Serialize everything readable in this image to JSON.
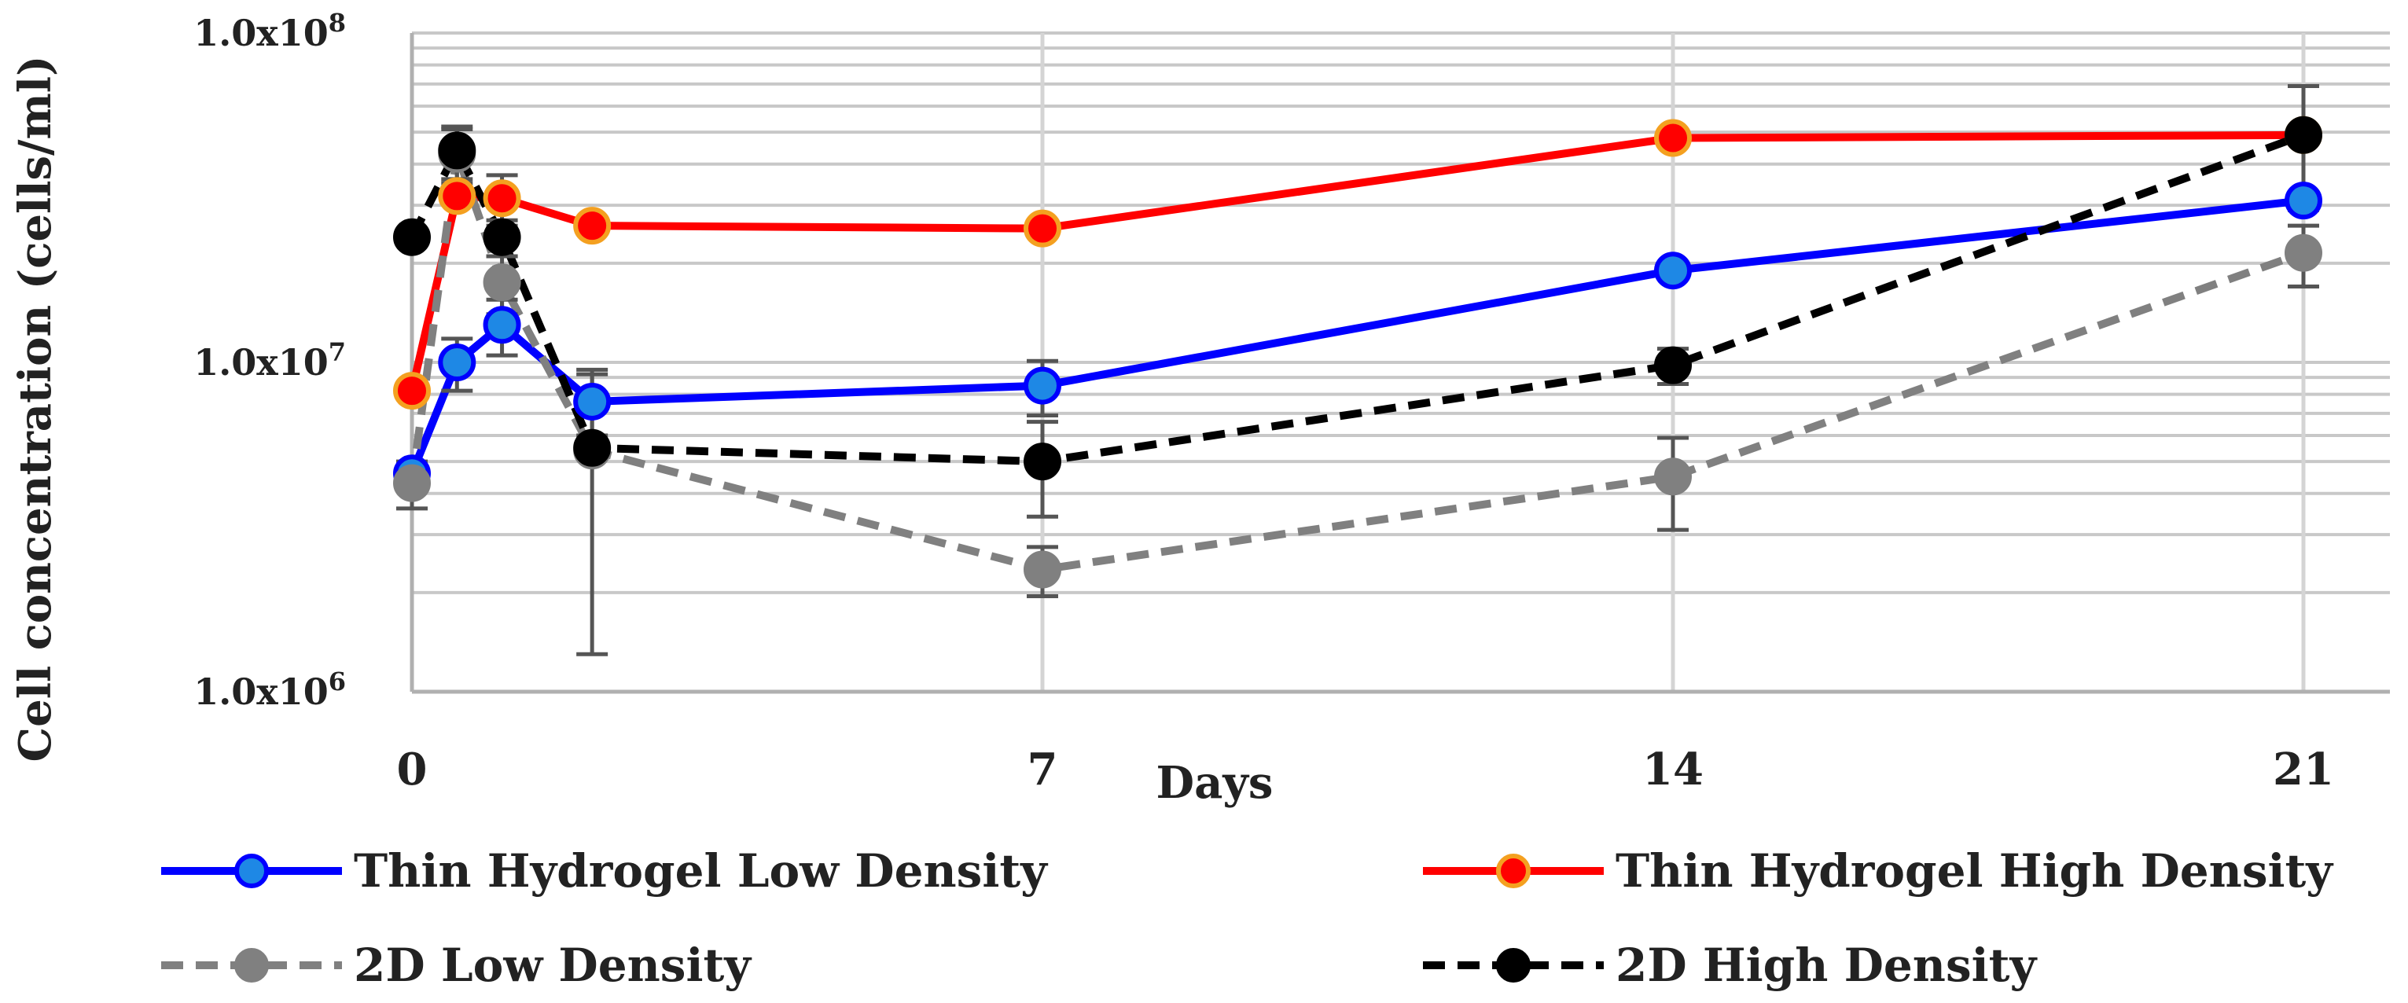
{
  "chart_data": {
    "type": "line",
    "title": "",
    "xlabel": "Days",
    "ylabel": "Cell concentration (cells/ml)",
    "y_scale": "log",
    "ylim": [
      1000000,
      100000000
    ],
    "xlim": [
      0,
      21
    ],
    "x_ticks": [
      0,
      7,
      14,
      21
    ],
    "x_tick_labels": [
      "0",
      "7",
      "14",
      "21"
    ],
    "y_ticks": [
      {
        "value": 1000000,
        "base": "1.0x10",
        "exp": "6"
      },
      {
        "value": 10000000,
        "base": "1.0x10",
        "exp": "7"
      },
      {
        "value": 100000000,
        "base": "1.0x10",
        "exp": "8"
      }
    ],
    "grid": true,
    "legend_position": "bottom",
    "series": [
      {
        "name": "Thin Hydrogel Low Density",
        "color": "#0000ff",
        "marker_fill": "#1e88e5",
        "marker_edge": "#0000ff",
        "dash": "solid",
        "points": [
          {
            "x": 0,
            "y": 4600000,
            "err": 0
          },
          {
            "x": 0.5,
            "y": 10000000,
            "err": 1800000
          },
          {
            "x": 1,
            "y": 13000000,
            "err": 2500000
          },
          {
            "x": 2,
            "y": 7600000,
            "err": 1600000
          },
          {
            "x": 7,
            "y": 8500000,
            "err": 1600000
          },
          {
            "x": 14,
            "y": 19000000,
            "err": 0
          },
          {
            "x": 21,
            "y": 31000000,
            "err": 0
          }
        ]
      },
      {
        "name": "Thin Hydrogel High Density",
        "color": "#ff0000",
        "marker_fill": "#ff0000",
        "marker_edge": "#f4a020",
        "dash": "solid",
        "points": [
          {
            "x": 0,
            "y": 8200000,
            "err": 0
          },
          {
            "x": 0.5,
            "y": 32000000,
            "err": 0
          },
          {
            "x": 1,
            "y": 31500000,
            "err": 5500000
          },
          {
            "x": 2,
            "y": 26000000,
            "err": 0
          },
          {
            "x": 7,
            "y": 25500000,
            "err": 0
          },
          {
            "x": 14,
            "y": 48000000,
            "err": 0
          },
          {
            "x": 21,
            "y": 49000000,
            "err": 0
          }
        ]
      },
      {
        "name": "2D Low Density",
        "color": "#808080",
        "marker_fill": "#808080",
        "marker_edge": "#808080",
        "dash": "dashed",
        "points": [
          {
            "x": 0,
            "y": 4300000,
            "err": 700000
          },
          {
            "x": 0.5,
            "y": 43000000,
            "err": 8000000
          },
          {
            "x": 1,
            "y": 17500000,
            "err": 3500000
          },
          {
            "x": 2,
            "y": 5400000,
            "err": 4100000
          },
          {
            "x": 7,
            "y": 2350000,
            "err": 400000
          },
          {
            "x": 14,
            "y": 4500000,
            "err": 1400000
          },
          {
            "x": 21,
            "y": 21500000,
            "err": 4500000
          }
        ]
      },
      {
        "name": "2D High Density",
        "color": "#000000",
        "marker_fill": "#000000",
        "marker_edge": "#000000",
        "dash": "dashed",
        "points": [
          {
            "x": 0,
            "y": 24000000,
            "err": 0
          },
          {
            "x": 0.5,
            "y": 44000000,
            "err": 8000000
          },
          {
            "x": 1,
            "y": 24000000,
            "err": 3000000
          },
          {
            "x": 2,
            "y": 5500000,
            "err": 0
          },
          {
            "x": 7,
            "y": 5000000,
            "err": 1600000
          },
          {
            "x": 14,
            "y": 9800000,
            "err": 1200000
          },
          {
            "x": 21,
            "y": 49000000,
            "err": 20000000
          }
        ]
      }
    ]
  }
}
